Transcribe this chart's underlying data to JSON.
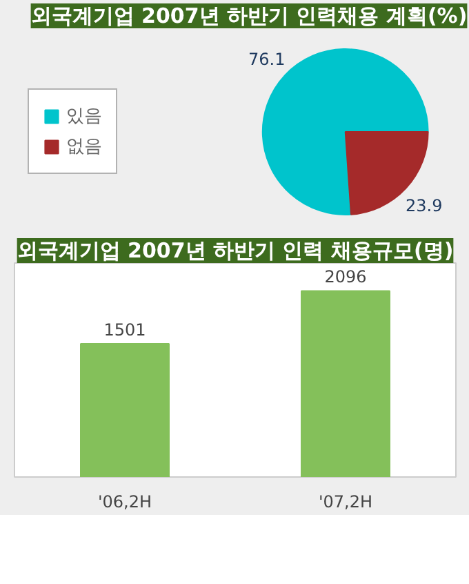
{
  "chart_data": [
    {
      "type": "pie",
      "title": "외국계기업 2007년 하반기 인력채용 계획(%)",
      "categories": [
        "있음",
        "없음"
      ],
      "values": [
        76.1,
        23.9
      ],
      "colors": [
        "#00c4cc",
        "#a52a2a"
      ],
      "data_labels": true,
      "legend": "left"
    },
    {
      "type": "bar",
      "title": "외국계기업 2007년 하반기 인력 채용규모(명)",
      "categories": [
        "'06,2H",
        "'07,2H"
      ],
      "values": [
        1501,
        2096
      ],
      "color": "#84c05a",
      "data_labels": true
    }
  ]
}
